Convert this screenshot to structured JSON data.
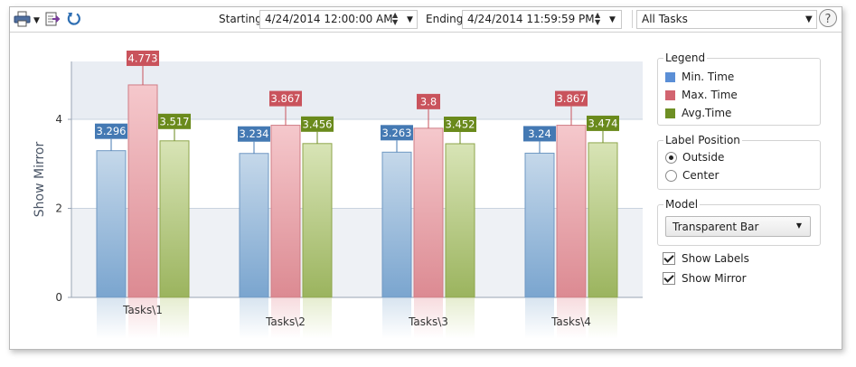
{
  "toolbar": {
    "starting_label": "Starting:",
    "starting_value": "4/24/2014 12:00:00 AM",
    "ending_label": "Ending:",
    "ending_value": "4/24/2014 11:59:59 PM",
    "filter_value": "All Tasks",
    "icons": [
      "printer-icon",
      "export-icon",
      "refresh-icon",
      "help-icon"
    ]
  },
  "panel": {
    "legend_title": "Legend",
    "legend_items": [
      {
        "label": "Min. Time",
        "color": "#5b8fd6"
      },
      {
        "label": "Max. Time",
        "color": "#d26470"
      },
      {
        "label": "Avg.Time",
        "color": "#6e8f24"
      }
    ],
    "label_position_title": "Label Position",
    "label_positions": [
      {
        "label": "Outside",
        "selected": true
      },
      {
        "label": "Center",
        "selected": false
      }
    ],
    "model_title": "Model",
    "model_value": "Transparent Bar",
    "show_labels": "Show Labels",
    "show_mirror": "Show Mirror"
  },
  "chart_data": {
    "type": "bar",
    "ylabel": "Show Mirror",
    "ylim": [
      0,
      5.3
    ],
    "yticks": [
      0,
      2,
      4
    ],
    "categories": [
      "Tasks\\1",
      "Tasks\\2",
      "Tasks\\3",
      "Tasks\\4"
    ],
    "series": [
      {
        "name": "Min. Time",
        "values": [
          3.296,
          3.234,
          3.263,
          3.24
        ],
        "color": "#4479b3"
      },
      {
        "name": "Max. Time",
        "values": [
          4.773,
          3.867,
          3.8,
          3.867
        ],
        "color": "#c9535c"
      },
      {
        "name": "Avg.Time",
        "values": [
          3.517,
          3.456,
          3.452,
          3.474
        ],
        "color": "#6a8a1c"
      }
    ],
    "show_labels": true,
    "show_mirror": true,
    "label_position": "outside"
  }
}
